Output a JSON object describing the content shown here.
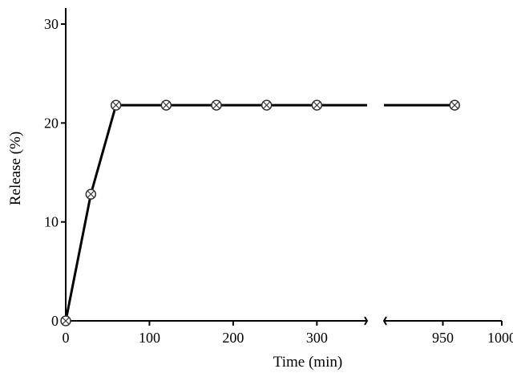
{
  "chart_data": {
    "type": "line",
    "title": "",
    "xlabel": "Time (min)",
    "ylabel": "Release (%)",
    "x_axis_break": {
      "from": 360,
      "to": 900
    },
    "xlim_left": [
      0,
      360
    ],
    "xlim_right": [
      900,
      1000
    ],
    "ylim": [
      0,
      30
    ],
    "x_ticks_left": [
      0,
      100,
      200,
      300
    ],
    "x_ticks_right": [
      950,
      1000
    ],
    "y_ticks": [
      0,
      10,
      20,
      30
    ],
    "grid": false,
    "line_color": "#000000",
    "series": [
      {
        "x": [
          0,
          30,
          60,
          120,
          180,
          240,
          300,
          960
        ],
        "y": [
          0,
          12.8,
          21.8,
          21.8,
          21.8,
          21.8,
          21.8,
          21.8
        ]
      }
    ]
  }
}
